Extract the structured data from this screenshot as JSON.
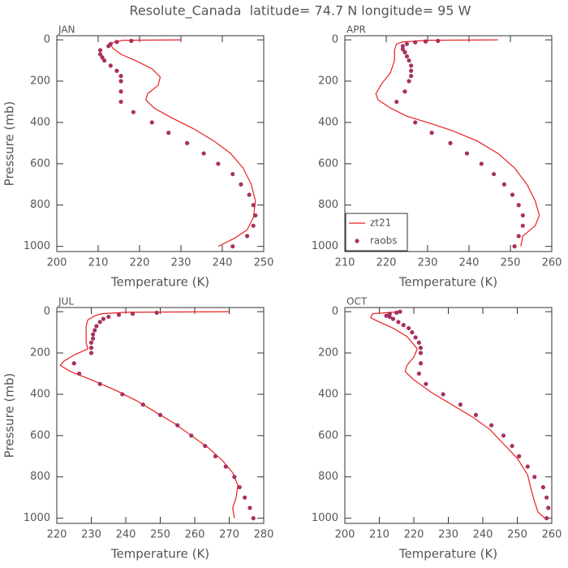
{
  "title": "Resolute_Canada  latitude= 74.7 N longitude= 95 W",
  "chart_data": [
    {
      "type": "line",
      "title": "JAN",
      "xlabel": "Temperature (K)",
      "ylabel": "Pressure (mb)",
      "xlim": [
        200,
        250
      ],
      "xticks": [
        200,
        210,
        220,
        230,
        240,
        250
      ],
      "ylim": [
        1025,
        -20
      ],
      "yticks": [
        0,
        200,
        400,
        600,
        800,
        1000
      ],
      "series": [
        {
          "name": "zt21",
          "color": "#e8201e",
          "style": "line",
          "x": [
            230,
            216,
            214,
            213,
            213.5,
            215.5,
            219,
            223,
            225,
            224.5,
            222,
            221.5,
            223.5,
            228,
            233,
            238,
            242,
            245,
            247,
            248,
            247.5,
            246,
            243,
            239
          ],
          "values": [
            0,
            2,
            10,
            20,
            40,
            70,
            100,
            140,
            180,
            220,
            260,
            290,
            330,
            380,
            430,
            490,
            550,
            620,
            700,
            780,
            860,
            920,
            960,
            1000
          ]
        },
        {
          "name": "raobs",
          "color": "#a83060",
          "style": "points",
          "x": [
            218,
            214.5,
            213,
            212.5,
            210.5,
            210.5,
            211,
            211.5,
            213,
            214.5,
            215.5,
            215.5,
            215.5,
            215.5,
            218.5,
            223,
            227,
            231.5,
            235.5,
            239,
            242.5,
            244.5,
            246.5,
            247.5,
            248,
            247.5,
            246,
            242.5
          ],
          "values": [
            5,
            10,
            20,
            30,
            50,
            70,
            85,
            100,
            125,
            150,
            175,
            200,
            250,
            300,
            350,
            400,
            450,
            500,
            550,
            600,
            650,
            700,
            750,
            800,
            850,
            900,
            950,
            1000
          ]
        }
      ]
    },
    {
      "type": "line",
      "title": "APR",
      "xlabel": "Temperature (K)",
      "legend": "lower left",
      "xlim": [
        210,
        260
      ],
      "xticks": [
        210,
        220,
        230,
        240,
        250,
        260
      ],
      "ylim": [
        1025,
        -20
      ],
      "yticks": [
        0,
        200,
        400,
        600,
        800,
        1000
      ],
      "series": [
        {
          "name": "zt21",
          "color": "#e8201e",
          "style": "line",
          "x": [
            247,
            230,
            224,
            222.5,
            222,
            222,
            221,
            219,
            217.5,
            218,
            221,
            225,
            230,
            236,
            242,
            247,
            251,
            254,
            256,
            257,
            256,
            253,
            252.5
          ],
          "values": [
            0,
            2,
            10,
            20,
            50,
            100,
            160,
            210,
            260,
            290,
            330,
            370,
            400,
            440,
            490,
            550,
            620,
            700,
            780,
            850,
            900,
            950,
            1000
          ]
        },
        {
          "name": "raobs",
          "color": "#a83060",
          "style": "points",
          "x": [
            232.5,
            229.5,
            227,
            225,
            224,
            224,
            224.5,
            225,
            225.5,
            226,
            226,
            226,
            225.5,
            224.5,
            222.5,
            227,
            231,
            235.5,
            239.5,
            243,
            246,
            248.5,
            250.5,
            252,
            253,
            253,
            252,
            251
          ],
          "values": [
            5,
            8,
            12,
            20,
            30,
            45,
            60,
            80,
            100,
            125,
            150,
            175,
            200,
            250,
            300,
            400,
            450,
            500,
            550,
            600,
            650,
            700,
            750,
            800,
            850,
            900,
            950,
            1000
          ]
        }
      ]
    },
    {
      "type": "line",
      "title": "JUL",
      "xlabel": "Temperature (K)",
      "ylabel": "Pressure (mb)",
      "xlim": [
        220,
        280
      ],
      "xticks": [
        220,
        230,
        240,
        250,
        260,
        270,
        280
      ],
      "ylim": [
        1025,
        -20
      ],
      "yticks": [
        0,
        200,
        400,
        600,
        800,
        1000
      ],
      "series": [
        {
          "name": "zt21",
          "color": "#e8201e",
          "style": "line",
          "x": [
            270,
            240,
            233,
            231,
            229,
            228.5,
            228.5,
            229,
            225,
            222,
            221,
            224,
            230,
            237,
            243,
            249,
            254,
            259,
            264,
            268,
            271,
            272.5,
            272,
            271,
            271.5
          ],
          "values": [
            0,
            3,
            10,
            20,
            40,
            70,
            150,
            180,
            210,
            240,
            260,
            290,
            330,
            380,
            430,
            490,
            540,
            600,
            660,
            720,
            780,
            840,
            900,
            950,
            1000
          ]
        },
        {
          "name": "raobs",
          "color": "#a83060",
          "style": "points",
          "x": [
            249,
            242,
            238,
            235,
            233.5,
            232.5,
            231.5,
            231,
            230.5,
            230.5,
            230,
            230,
            230,
            225,
            226.5,
            232.5,
            239,
            245,
            250,
            255,
            259,
            263,
            266,
            269,
            271.5,
            273,
            274.5,
            276,
            277
          ],
          "values": [
            5,
            10,
            15,
            25,
            35,
            50,
            70,
            90,
            110,
            130,
            150,
            175,
            200,
            250,
            300,
            350,
            400,
            450,
            500,
            550,
            600,
            650,
            700,
            750,
            800,
            850,
            900,
            950,
            1000
          ]
        }
      ]
    },
    {
      "type": "line",
      "title": "OCT",
      "xlabel": "Temperature (K)",
      "xlim": [
        200,
        260
      ],
      "xticks": [
        200,
        210,
        220,
        230,
        240,
        250,
        260
      ],
      "ylim": [
        1025,
        -20
      ],
      "yticks": [
        0,
        200,
        400,
        600,
        800,
        1000
      ],
      "series": [
        {
          "name": "zt21",
          "color": "#e8201e",
          "style": "line",
          "x": [
            216,
            208,
            207.5,
            210,
            214,
            218,
            221,
            220,
            218,
            217.5,
            220,
            225,
            231,
            237,
            242,
            246,
            250,
            253,
            254,
            255,
            256,
            258
          ],
          "values": [
            0,
            10,
            30,
            50,
            80,
            120,
            180,
            220,
            260,
            290,
            330,
            390,
            450,
            510,
            570,
            640,
            710,
            790,
            860,
            920,
            970,
            1000
          ]
        },
        {
          "name": "raobs",
          "color": "#a83060",
          "style": "points",
          "x": [
            216,
            215,
            213,
            212,
            213,
            214,
            215.5,
            217,
            218.5,
            219.5,
            220.5,
            221.5,
            222,
            222,
            222,
            221.5,
            223.5,
            228.5,
            233.5,
            238,
            242.5,
            246,
            248.5,
            250.5,
            253,
            255,
            257.5,
            258.5,
            259,
            258.5
          ],
          "values": [
            0,
            5,
            10,
            20,
            25,
            35,
            50,
            65,
            80,
            100,
            125,
            150,
            175,
            200,
            250,
            300,
            350,
            400,
            450,
            500,
            550,
            600,
            650,
            700,
            750,
            800,
            850,
            900,
            950,
            1000
          ]
        }
      ]
    }
  ]
}
